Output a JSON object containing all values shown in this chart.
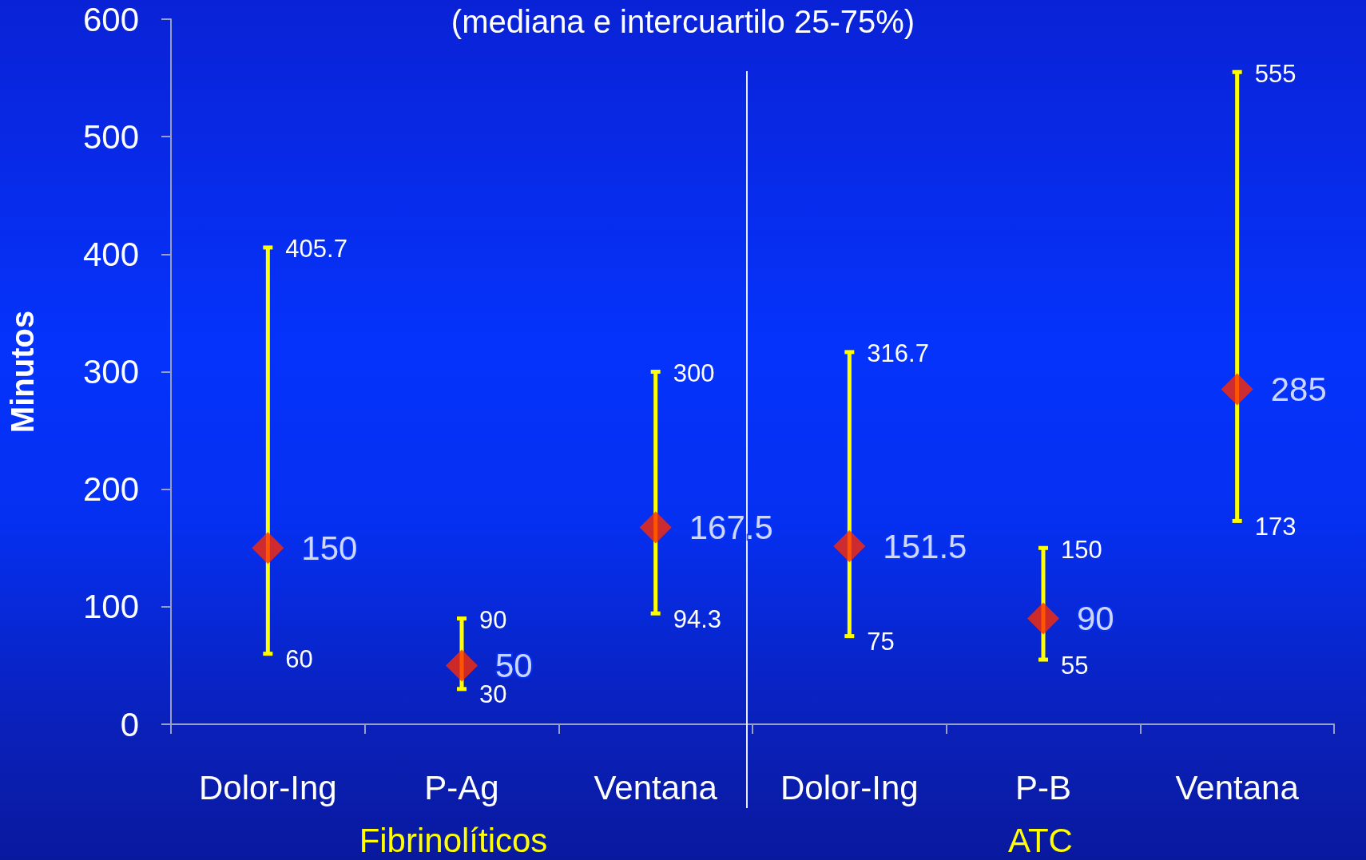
{
  "chart_data": {
    "type": "scatter",
    "title": "(mediana e intercuartilo 25-75%)",
    "ylabel": "Minutos",
    "categories": [
      "Dolor-Ing",
      "P-Ag",
      "Ventana",
      "Dolor-Ing",
      "P-B",
      "Ventana"
    ],
    "values": [
      150,
      50,
      167.5,
      151.5,
      90,
      285
    ],
    "errors": [
      [
        60,
        405.7
      ],
      [
        30,
        90
      ],
      [
        94.3,
        300
      ],
      [
        75,
        316.7
      ],
      [
        55,
        150
      ],
      [
        173,
        555
      ]
    ],
    "color": "#ff2a00",
    "marker": "diamond",
    "data_labels": true,
    "ylim": [
      0,
      600
    ],
    "yticks": [
      0,
      100,
      200,
      300,
      400,
      500,
      600
    ],
    "annotations": [
      "Fibrinolíticos",
      "ATC",
      "405.7",
      "60",
      "90",
      "30",
      "300",
      "94.3",
      "316.7",
      "75",
      "150",
      "55",
      "555",
      "173"
    ]
  }
}
